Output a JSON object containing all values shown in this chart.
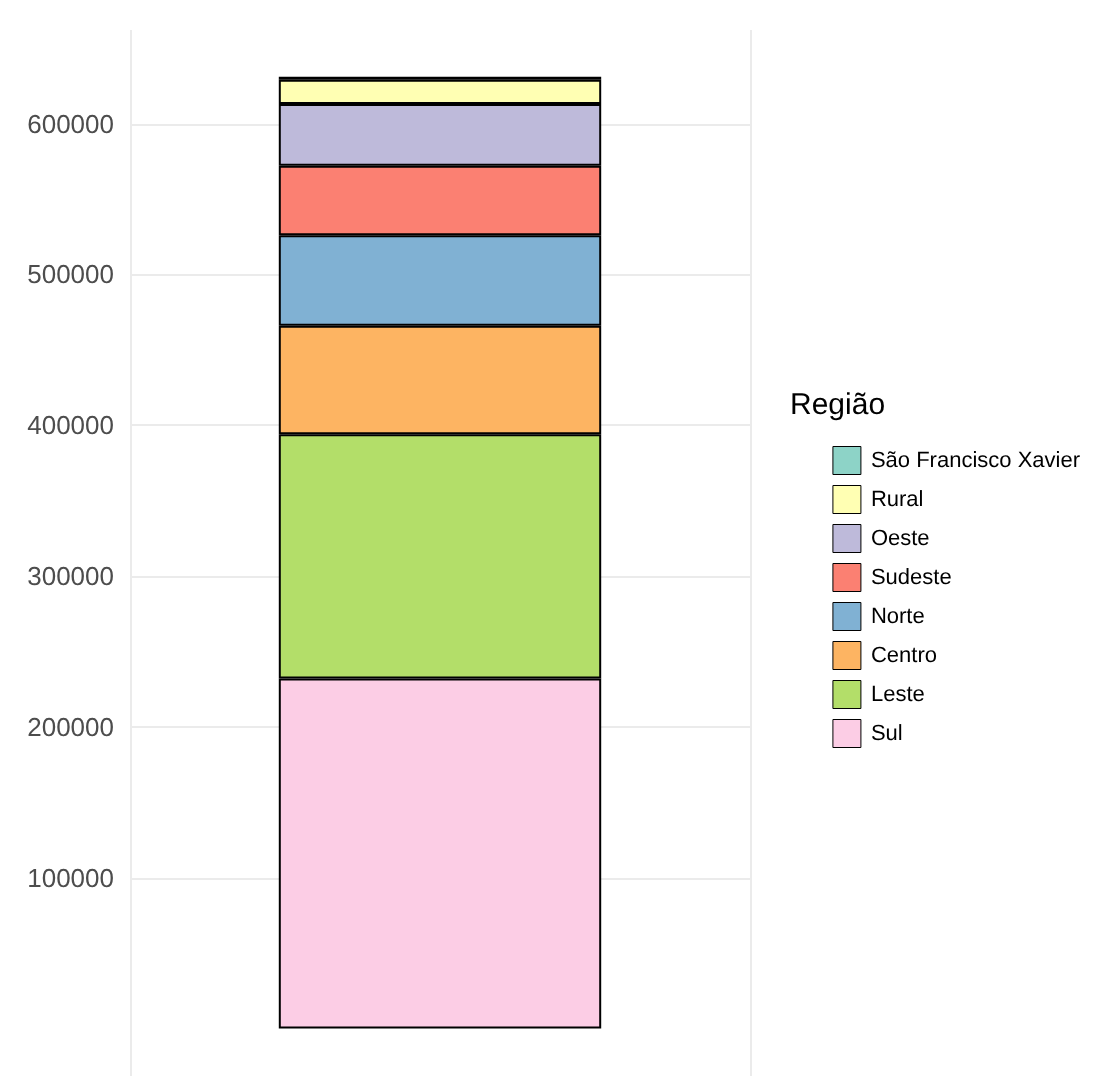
{
  "chart_data": {
    "type": "bar",
    "stacked": true,
    "categories": [
      null
    ],
    "legend_title": "Região",
    "legend": "right",
    "grid": true,
    "ylim": [
      -31500,
      662000
    ],
    "yticks": [
      100000,
      200000,
      300000,
      400000,
      500000,
      600000
    ],
    "series": [
      {
        "name": "Sul",
        "color": "#fccde5",
        "values": [
          232000
        ]
      },
      {
        "name": "Leste",
        "color": "#b3de69",
        "values": [
          162000
        ]
      },
      {
        "name": "Centro",
        "color": "#fdb462",
        "values": [
          72000
        ]
      },
      {
        "name": "Norte",
        "color": "#80b1d3",
        "values": [
          60000
        ]
      },
      {
        "name": "Sudeste",
        "color": "#fb8072",
        "values": [
          46000
        ]
      },
      {
        "name": "Oeste",
        "color": "#bebada",
        "values": [
          41000
        ]
      },
      {
        "name": "Rural",
        "color": "#ffffb3",
        "values": [
          16000
        ]
      },
      {
        "name": "São Francisco Xavier",
        "color": "#8dd3c7",
        "values": [
          2000
        ]
      }
    ]
  }
}
